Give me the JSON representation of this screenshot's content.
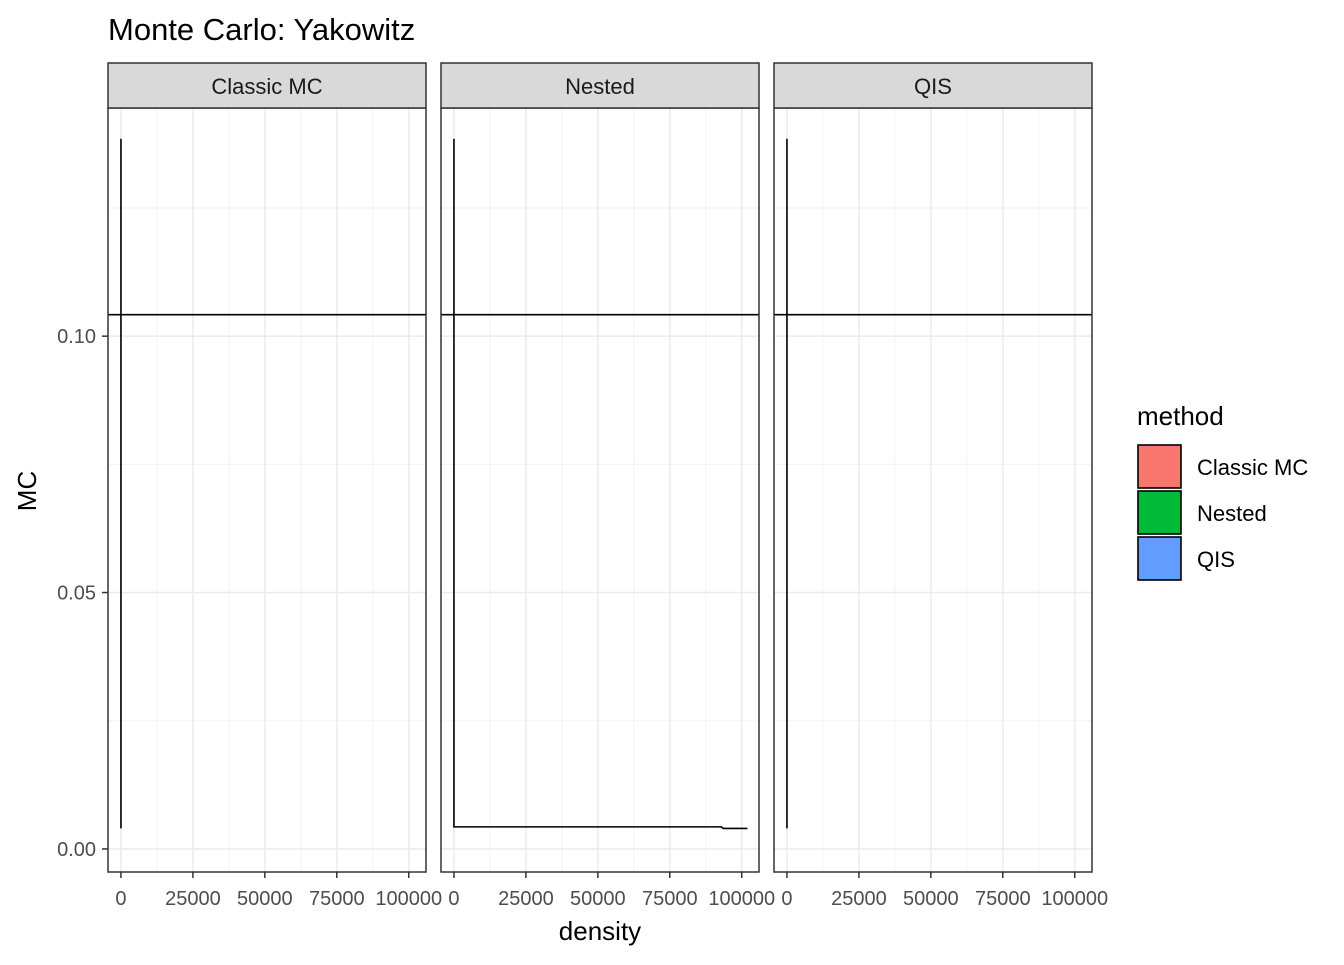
{
  "chart_data": {
    "type": "line",
    "title": "Monte Carlo: Yakowitz",
    "xlabel": "density",
    "ylabel": "MC",
    "xlim": [
      -4500,
      106000
    ],
    "ylim": [
      -0.0045,
      0.1445
    ],
    "x_ticks": [
      0,
      25000,
      50000,
      75000,
      100000
    ],
    "x_tick_labels": [
      "0",
      "25000",
      "50000",
      "75000",
      "100000"
    ],
    "y_ticks": [
      0.0,
      0.05,
      0.1
    ],
    "y_tick_labels": [
      "0.00",
      "0.05",
      "0.10"
    ],
    "grid": true,
    "facet_by": "method",
    "panels": [
      {
        "name": "Classic MC",
        "points": [
          [
            0,
            0.004
          ],
          [
            0,
            0.1385
          ]
        ]
      },
      {
        "name": "Nested",
        "points": [
          [
            0,
            0.1385
          ],
          [
            0,
            0.0043
          ],
          [
            93000,
            0.0043
          ],
          [
            93500,
            0.004
          ],
          [
            102000,
            0.004
          ]
        ]
      },
      {
        "name": "QIS",
        "points": [
          [
            0,
            0.004
          ],
          [
            0,
            0.1385
          ]
        ]
      }
    ],
    "hline": 0.1042,
    "legend": {
      "title": "method",
      "position": "right",
      "entries": [
        {
          "label": "Classic MC",
          "color": "#F8766D"
        },
        {
          "label": "Nested",
          "color": "#00BA38"
        },
        {
          "label": "QIS",
          "color": "#619CFF"
        }
      ]
    }
  }
}
